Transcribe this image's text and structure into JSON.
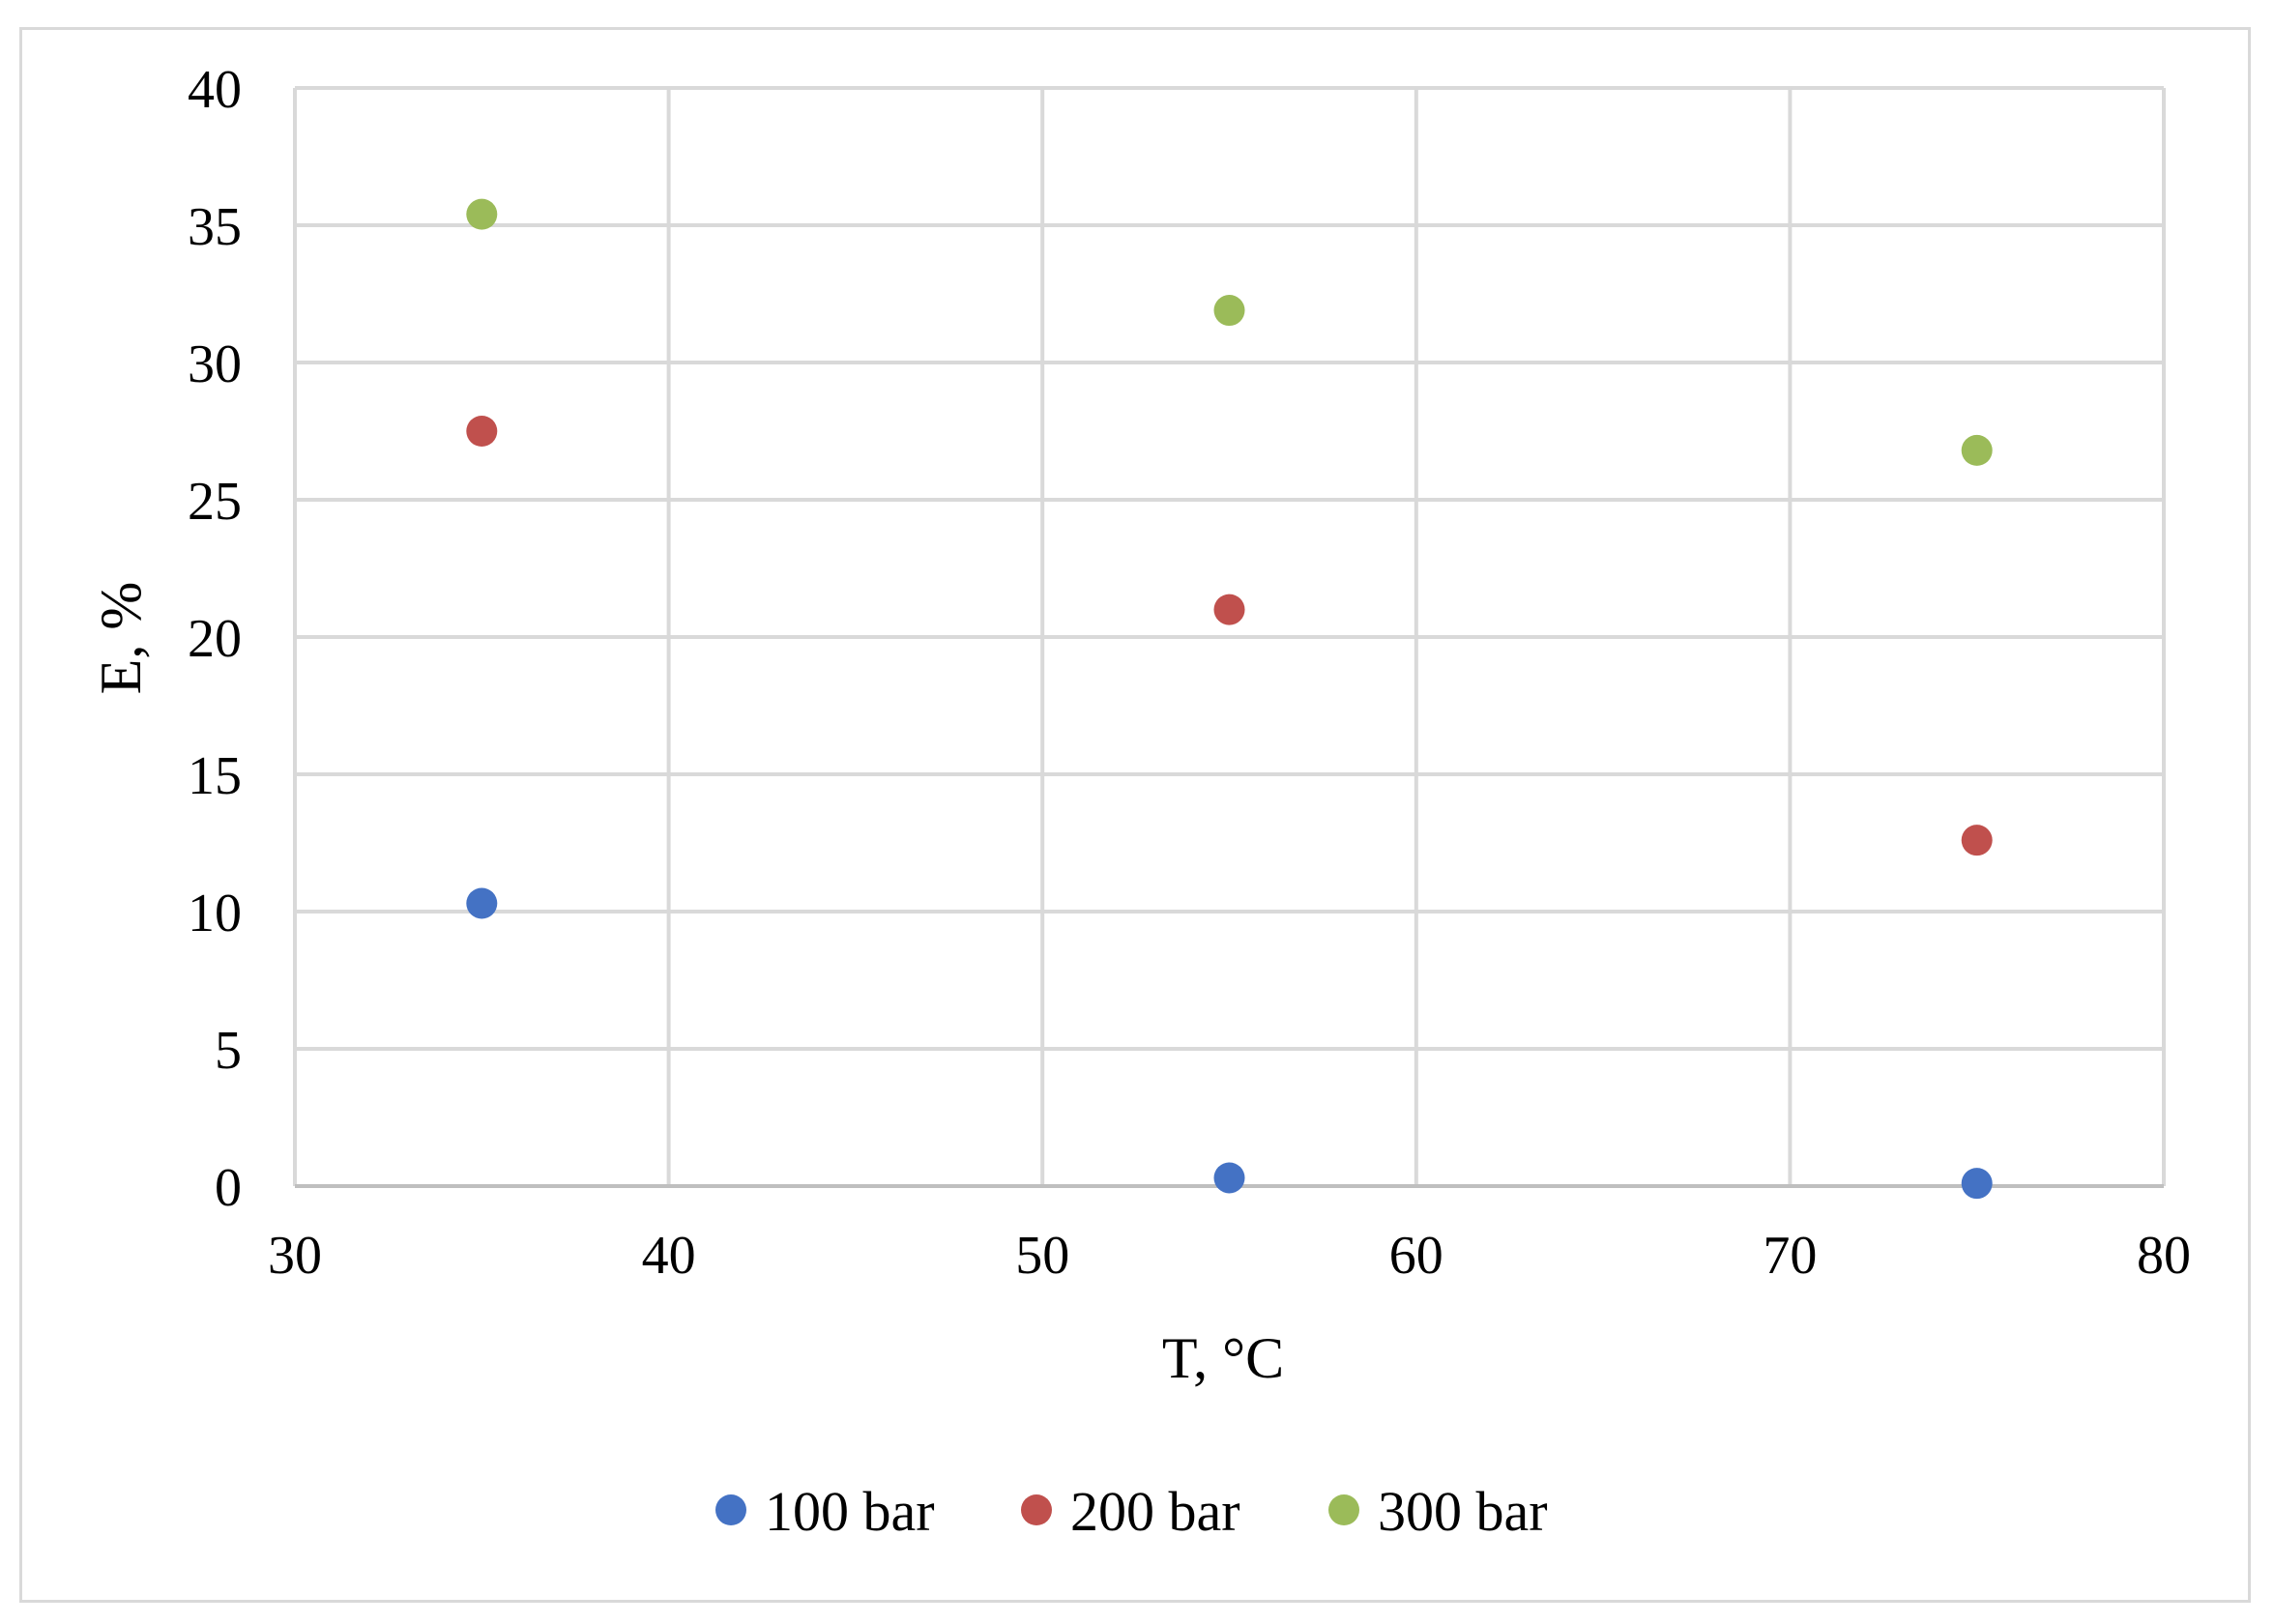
{
  "chart_data": {
    "type": "scatter",
    "title": "",
    "xlabel": "T, °C",
    "ylabel": "E, %",
    "xlim": [
      30,
      80
    ],
    "ylim": [
      0,
      40
    ],
    "x_ticks": [
      30,
      40,
      50,
      60,
      70,
      80
    ],
    "y_ticks": [
      0,
      5,
      10,
      15,
      20,
      25,
      30,
      35,
      40
    ],
    "grid": true,
    "legend_position": "bottom",
    "series": [
      {
        "name": "100 bar",
        "color": "#4472c4",
        "points": [
          {
            "x": 35,
            "y": 10.3
          },
          {
            "x": 55,
            "y": 0.3
          },
          {
            "x": 75,
            "y": 0.1
          }
        ]
      },
      {
        "name": "200 bar",
        "color": "#c0504d",
        "points": [
          {
            "x": 35,
            "y": 27.5
          },
          {
            "x": 55,
            "y": 21.0
          },
          {
            "x": 75,
            "y": 12.6
          }
        ]
      },
      {
        "name": "300 bar",
        "color": "#9bbb59",
        "points": [
          {
            "x": 35,
            "y": 35.4
          },
          {
            "x": 55,
            "y": 31.9
          },
          {
            "x": 75,
            "y": 26.8
          }
        ]
      }
    ]
  }
}
